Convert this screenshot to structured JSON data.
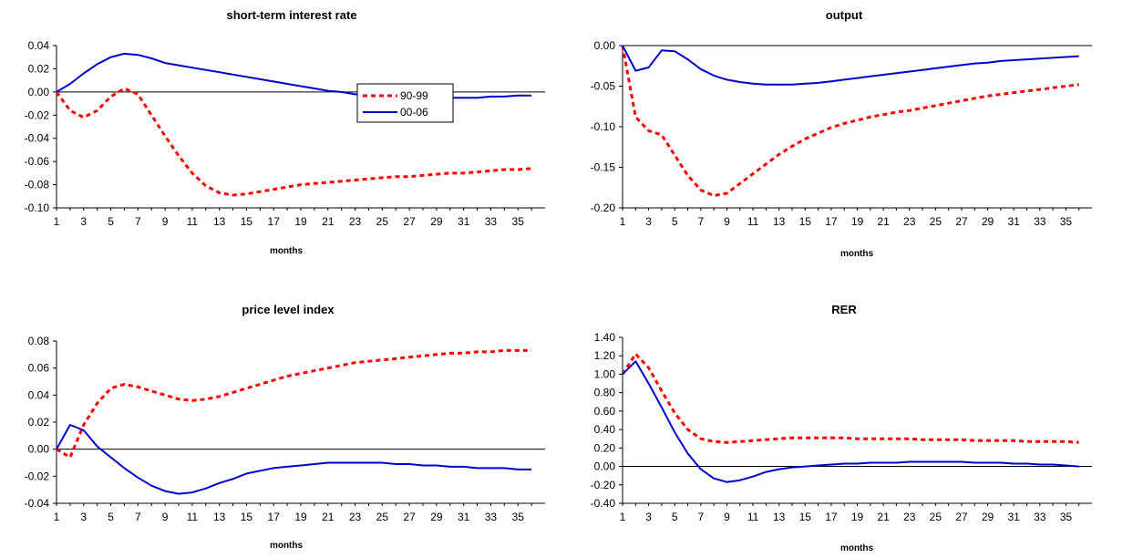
{
  "colors": {
    "series_90_99": "#ff0000",
    "series_00_06": "#0000cc",
    "axis": "#000000"
  },
  "chart_data": [
    {
      "type": "line",
      "title": "short-term interest rate",
      "xlabel": "months",
      "ylabel": "",
      "x": [
        1,
        2,
        3,
        4,
        5,
        6,
        7,
        8,
        9,
        10,
        11,
        12,
        13,
        14,
        15,
        16,
        17,
        18,
        19,
        20,
        21,
        22,
        23,
        24,
        25,
        26,
        27,
        28,
        29,
        30,
        31,
        32,
        33,
        34,
        35,
        36
      ],
      "xticks": [
        "1",
        "3",
        "5",
        "7",
        "9",
        "11",
        "13",
        "15",
        "17",
        "19",
        "21",
        "23",
        "25",
        "27",
        "29",
        "31",
        "33",
        "35"
      ],
      "ylim": [
        -0.1,
        0.04
      ],
      "yticks": [
        "0.04",
        "0.02",
        "0.00",
        "-0.02",
        "-0.04",
        "-0.06",
        "-0.08",
        "-0.10"
      ],
      "ytick_values": [
        0.04,
        0.02,
        0.0,
        -0.02,
        -0.04,
        -0.06,
        -0.08,
        -0.1
      ],
      "legend": {
        "placement": "center",
        "entries": [
          "90-99",
          "00-06"
        ]
      },
      "series": [
        {
          "name": "90-99",
          "style": "dotted",
          "values": [
            0.0,
            -0.016,
            -0.022,
            -0.016,
            -0.004,
            0.003,
            -0.002,
            -0.02,
            -0.038,
            -0.055,
            -0.07,
            -0.081,
            -0.087,
            -0.089,
            -0.088,
            -0.086,
            -0.084,
            -0.082,
            -0.08,
            -0.079,
            -0.078,
            -0.077,
            -0.076,
            -0.075,
            -0.074,
            -0.073,
            -0.073,
            -0.072,
            -0.071,
            -0.07,
            -0.07,
            -0.069,
            -0.068,
            -0.067,
            -0.067,
            -0.066
          ]
        },
        {
          "name": "00-06",
          "style": "solid",
          "values": [
            0.0,
            0.007,
            0.016,
            0.024,
            0.03,
            0.033,
            0.032,
            0.029,
            0.025,
            0.023,
            0.021,
            0.019,
            0.017,
            0.015,
            0.013,
            0.011,
            0.009,
            0.007,
            0.005,
            0.003,
            0.001,
            0.0,
            -0.002,
            -0.003,
            -0.004,
            -0.004,
            -0.005,
            -0.005,
            -0.005,
            -0.005,
            -0.005,
            -0.005,
            -0.004,
            -0.004,
            -0.003,
            -0.003
          ]
        }
      ]
    },
    {
      "type": "line",
      "title": "output",
      "xlabel": "months",
      "ylabel": "",
      "x": [
        1,
        2,
        3,
        4,
        5,
        6,
        7,
        8,
        9,
        10,
        11,
        12,
        13,
        14,
        15,
        16,
        17,
        18,
        19,
        20,
        21,
        22,
        23,
        24,
        25,
        26,
        27,
        28,
        29,
        30,
        31,
        32,
        33,
        34,
        35,
        36
      ],
      "xticks": [
        "1",
        "3",
        "5",
        "7",
        "9",
        "11",
        "13",
        "15",
        "17",
        "19",
        "21",
        "23",
        "25",
        "27",
        "29",
        "31",
        "33",
        "35"
      ],
      "ylim": [
        -0.2,
        0.0
      ],
      "yticks": [
        "0.00",
        "-0.05",
        "-0.10",
        "-0.15",
        "-0.20"
      ],
      "ytick_values": [
        0.0,
        -0.05,
        -0.1,
        -0.15,
        -0.2
      ],
      "series": [
        {
          "name": "90-99",
          "style": "dotted",
          "values": [
            0.0,
            -0.088,
            -0.105,
            -0.11,
            -0.135,
            -0.16,
            -0.178,
            -0.185,
            -0.182,
            -0.17,
            -0.158,
            -0.146,
            -0.134,
            -0.124,
            -0.115,
            -0.108,
            -0.101,
            -0.096,
            -0.092,
            -0.088,
            -0.085,
            -0.082,
            -0.08,
            -0.077,
            -0.074,
            -0.071,
            -0.068,
            -0.065,
            -0.062,
            -0.06,
            -0.058,
            -0.056,
            -0.054,
            -0.052,
            -0.05,
            -0.048
          ]
        },
        {
          "name": "00-06",
          "style": "solid",
          "values": [
            0.0,
            -0.031,
            -0.027,
            -0.006,
            -0.007,
            -0.017,
            -0.029,
            -0.037,
            -0.042,
            -0.045,
            -0.047,
            -0.048,
            -0.048,
            -0.048,
            -0.047,
            -0.046,
            -0.044,
            -0.042,
            -0.04,
            -0.038,
            -0.036,
            -0.034,
            -0.032,
            -0.03,
            -0.028,
            -0.026,
            -0.024,
            -0.022,
            -0.021,
            -0.019,
            -0.018,
            -0.017,
            -0.016,
            -0.015,
            -0.014,
            -0.013
          ]
        }
      ]
    },
    {
      "type": "line",
      "title": "price level index",
      "xlabel": "months",
      "ylabel": "",
      "x": [
        1,
        2,
        3,
        4,
        5,
        6,
        7,
        8,
        9,
        10,
        11,
        12,
        13,
        14,
        15,
        16,
        17,
        18,
        19,
        20,
        21,
        22,
        23,
        24,
        25,
        26,
        27,
        28,
        29,
        30,
        31,
        32,
        33,
        34,
        35,
        36
      ],
      "xticks": [
        "1",
        "3",
        "5",
        "7",
        "9",
        "11",
        "13",
        "15",
        "17",
        "19",
        "21",
        "23",
        "25",
        "27",
        "29",
        "31",
        "33",
        "35"
      ],
      "ylim": [
        -0.04,
        0.08
      ],
      "yticks": [
        "0.08",
        "0.06",
        "0.04",
        "0.02",
        "0.00",
        "-0.02",
        "-0.04"
      ],
      "ytick_values": [
        0.08,
        0.06,
        0.04,
        0.02,
        0.0,
        -0.02,
        -0.04
      ],
      "series": [
        {
          "name": "90-99",
          "style": "dotted",
          "values": [
            0.0,
            -0.006,
            0.018,
            0.034,
            0.045,
            0.048,
            0.046,
            0.043,
            0.04,
            0.037,
            0.036,
            0.037,
            0.039,
            0.042,
            0.045,
            0.048,
            0.051,
            0.054,
            0.056,
            0.058,
            0.06,
            0.062,
            0.064,
            0.065,
            0.066,
            0.067,
            0.068,
            0.069,
            0.07,
            0.071,
            0.071,
            0.072,
            0.072,
            0.073,
            0.073,
            0.073
          ]
        },
        {
          "name": "00-06",
          "style": "solid",
          "values": [
            0.0,
            0.018,
            0.014,
            0.002,
            -0.006,
            -0.014,
            -0.021,
            -0.027,
            -0.031,
            -0.033,
            -0.032,
            -0.029,
            -0.025,
            -0.022,
            -0.018,
            -0.016,
            -0.014,
            -0.013,
            -0.012,
            -0.011,
            -0.01,
            -0.01,
            -0.01,
            -0.01,
            -0.01,
            -0.011,
            -0.011,
            -0.012,
            -0.012,
            -0.013,
            -0.013,
            -0.014,
            -0.014,
            -0.014,
            -0.015,
            -0.015
          ]
        }
      ]
    },
    {
      "type": "line",
      "title": "RER",
      "xlabel": "months",
      "ylabel": "",
      "x": [
        1,
        2,
        3,
        4,
        5,
        6,
        7,
        8,
        9,
        10,
        11,
        12,
        13,
        14,
        15,
        16,
        17,
        18,
        19,
        20,
        21,
        22,
        23,
        24,
        25,
        26,
        27,
        28,
        29,
        30,
        31,
        32,
        33,
        34,
        35,
        36
      ],
      "xticks": [
        "1",
        "3",
        "5",
        "7",
        "9",
        "11",
        "13",
        "15",
        "17",
        "19",
        "21",
        "23",
        "25",
        "27",
        "29",
        "31",
        "33",
        "35"
      ],
      "ylim": [
        -0.4,
        1.4
      ],
      "yticks": [
        "1.40",
        "1.20",
        "1.00",
        "0.80",
        "0.60",
        "0.40",
        "0.20",
        "0.00",
        "-0.20",
        "-0.40"
      ],
      "ytick_values": [
        1.4,
        1.2,
        1.0,
        0.8,
        0.6,
        0.4,
        0.2,
        0.0,
        -0.2,
        -0.4
      ],
      "series": [
        {
          "name": "90-99",
          "style": "dotted",
          "values": [
            1.0,
            1.22,
            1.07,
            0.82,
            0.58,
            0.4,
            0.3,
            0.27,
            0.26,
            0.27,
            0.28,
            0.29,
            0.3,
            0.31,
            0.31,
            0.31,
            0.31,
            0.31,
            0.3,
            0.3,
            0.3,
            0.3,
            0.3,
            0.29,
            0.29,
            0.29,
            0.29,
            0.28,
            0.28,
            0.28,
            0.28,
            0.27,
            0.27,
            0.27,
            0.27,
            0.26
          ]
        },
        {
          "name": "00-06",
          "style": "solid",
          "values": [
            1.0,
            1.14,
            0.9,
            0.64,
            0.37,
            0.14,
            -0.03,
            -0.13,
            -0.17,
            -0.15,
            -0.11,
            -0.06,
            -0.03,
            -0.01,
            0.0,
            0.01,
            0.02,
            0.03,
            0.03,
            0.04,
            0.04,
            0.04,
            0.05,
            0.05,
            0.05,
            0.05,
            0.05,
            0.04,
            0.04,
            0.04,
            0.03,
            0.03,
            0.02,
            0.02,
            0.01,
            0.0
          ]
        }
      ]
    }
  ]
}
